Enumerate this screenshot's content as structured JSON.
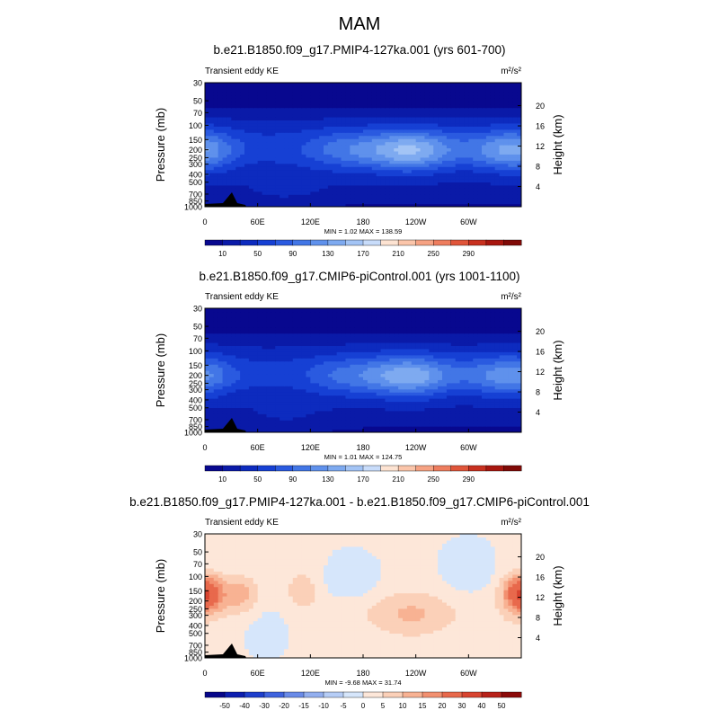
{
  "figure": {
    "title": "MAM"
  },
  "colors": {
    "abs_palette": [
      "#08088f",
      "#0a1aa8",
      "#0d2bbf",
      "#1640d4",
      "#2a5ae0",
      "#4276e6",
      "#5f91ec",
      "#7eaaf0",
      "#a3c4f5",
      "#c8dcfa",
      "#fde3d2",
      "#fbc5aa",
      "#f6a283",
      "#ee7d5e",
      "#e0553a",
      "#c8301f",
      "#a8160f",
      "#800a07"
    ],
    "diff_palette": [
      "#07078a",
      "#0d1fb0",
      "#1e3fcc",
      "#3f63de",
      "#6a8be8",
      "#93afef",
      "#b6cdf6",
      "#d6e6fb",
      "#fde7d9",
      "#fbd0b8",
      "#f8b293",
      "#f29070",
      "#e8694c",
      "#d84430",
      "#b8221a",
      "#8c0a09"
    ],
    "topography": "#000000"
  },
  "chart_data": [
    {
      "type": "heatmap",
      "title": "b.e21.B1850.f09_g17.PMIP4-127ka.001 (yrs 601-700)",
      "left_label": "Transient eddy KE",
      "units_label": "m²/s²",
      "ylabel": "Pressure (mb)",
      "ylabel_right": "Height (km)",
      "pressure_ticks": [
        "30",
        "50",
        "70",
        "100",
        "150",
        "200",
        "250",
        "300",
        "400",
        "500",
        "700",
        "850",
        "1000"
      ],
      "height_ticks": [
        "20",
        "16",
        "12",
        "8",
        "4"
      ],
      "lon_ticks": [
        "0",
        "60E",
        "120E",
        "180",
        "120W",
        "60W"
      ],
      "stats": "MIN =   1.02  MAX = 138.59",
      "colorbar_labels": [
        "10",
        "50",
        "90",
        "130",
        "170",
        "210",
        "250",
        "290"
      ],
      "levels": [
        10,
        30,
        50,
        70,
        90,
        110,
        130,
        150,
        170,
        190,
        210,
        230,
        250,
        270,
        290
      ],
      "min": 1.02,
      "max": 138.59,
      "field": "abs_A"
    },
    {
      "type": "heatmap",
      "title": "b.e21.B1850.f09_g17.CMIP6-piControl.001 (yrs 1001-1100)",
      "left_label": "Transient eddy KE",
      "units_label": "m²/s²",
      "ylabel": "Pressure (mb)",
      "ylabel_right": "Height (km)",
      "pressure_ticks": [
        "30",
        "50",
        "70",
        "100",
        "150",
        "200",
        "250",
        "300",
        "400",
        "500",
        "700",
        "850",
        "1000"
      ],
      "height_ticks": [
        "20",
        "16",
        "12",
        "8",
        "4"
      ],
      "lon_ticks": [
        "0",
        "60E",
        "120E",
        "180",
        "120W",
        "60W"
      ],
      "stats": "MIN =   1.01  MAX = 124.75",
      "colorbar_labels": [
        "10",
        "50",
        "90",
        "130",
        "170",
        "210",
        "250",
        "290"
      ],
      "levels": [
        10,
        30,
        50,
        70,
        90,
        110,
        130,
        150,
        170,
        190,
        210,
        230,
        250,
        270,
        290
      ],
      "min": 1.01,
      "max": 124.75,
      "field": "abs_B"
    },
    {
      "type": "heatmap",
      "title": "b.e21.B1850.f09_g17.PMIP4-127ka.001 - b.e21.B1850.f09_g17.CMIP6-piControl.001",
      "left_label": "Transient eddy KE",
      "units_label": "m²/s²",
      "ylabel": "Pressure (mb)",
      "ylabel_right": "Height (km)",
      "pressure_ticks": [
        "30",
        "50",
        "70",
        "100",
        "150",
        "200",
        "250",
        "300",
        "400",
        "500",
        "700",
        "850",
        "1000"
      ],
      "height_ticks": [
        "20",
        "16",
        "12",
        "8",
        "4"
      ],
      "lon_ticks": [
        "0",
        "60E",
        "120E",
        "180",
        "120W",
        "60W"
      ],
      "stats": "MIN =  -9.68  MAX =  31.74",
      "colorbar_labels": [
        "-50",
        "-40",
        "-30",
        "-20",
        "-15",
        "-10",
        "-5",
        "0",
        "5",
        "10",
        "15",
        "20",
        "30",
        "40",
        "50"
      ],
      "levels": [
        -50,
        -40,
        -30,
        -20,
        -15,
        -10,
        -5,
        0,
        5,
        10,
        15,
        20,
        30,
        40,
        50
      ],
      "min": -9.68,
      "max": 31.74,
      "field": "diff"
    }
  ]
}
